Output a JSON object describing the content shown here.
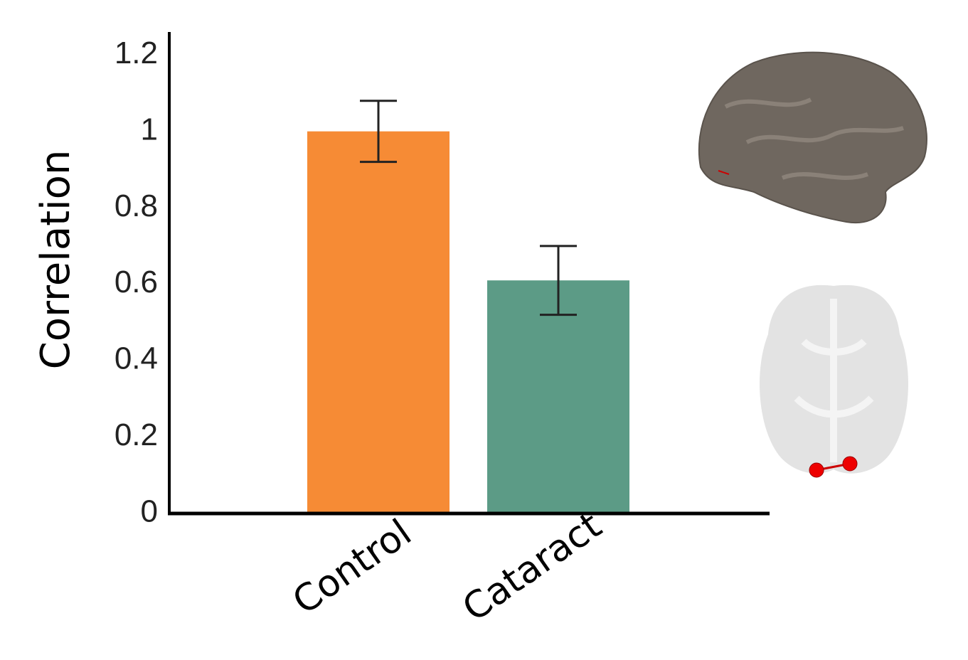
{
  "chart_data": {
    "type": "bar",
    "ylabel": "Correlation",
    "categories": [
      "Control",
      "Cataract"
    ],
    "values": [
      1.0,
      0.61
    ],
    "errors": [
      0.08,
      0.09
    ],
    "colors": [
      "#f68b35",
      "#5c9b86"
    ],
    "ylim": [
      0,
      1.26
    ],
    "yticks": [
      0,
      0.2,
      0.4,
      0.6,
      0.8,
      1,
      1.2
    ],
    "grid": false
  }
}
